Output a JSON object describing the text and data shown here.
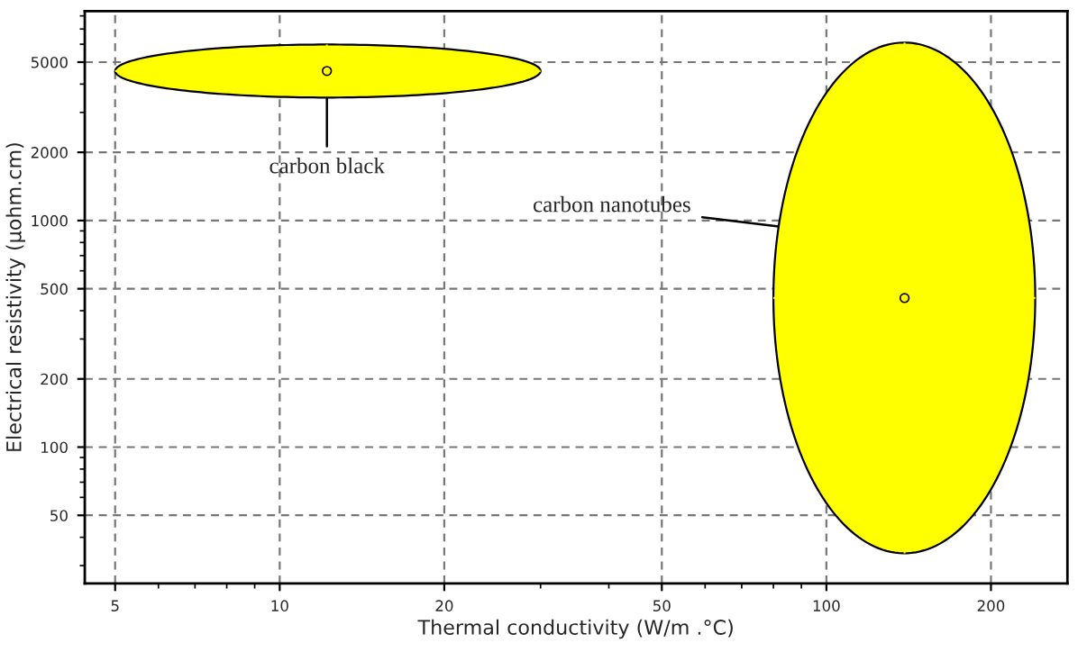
{
  "chart_data": {
    "type": "scatter",
    "marker": "circle",
    "xlabel": "Thermal conductivity (W/m .°C)",
    "ylabel": "Electrical resistivity (µohm.cm)",
    "log": "xy",
    "xlim": [
      4.4,
      276
    ],
    "ylim": [
      25,
      8400
    ],
    "xticks": [
      5,
      10,
      20,
      50,
      100,
      200
    ],
    "yticks": [
      50,
      100,
      200,
      500,
      1000,
      2000,
      5000
    ],
    "grid": true,
    "series": [
      {
        "color": "#ffff00",
        "x": [
          12.2
        ],
        "values": [
          4570
        ],
        "xerrors": [
          [
            5,
            30
          ]
        ],
        "errors": [
          [
            3490,
            5980
          ]
        ]
      },
      {
        "color": "#ffff00",
        "x": [
          139
        ],
        "values": [
          455
        ],
        "xerrors": [
          [
            80,
            241
          ]
        ],
        "errors": [
          [
            34,
            6100
          ]
        ]
      }
    ],
    "annotations": [
      {
        "text": "carbon black",
        "x": 12.2,
        "y": 3490
      },
      "carbon nanotubes"
    ]
  }
}
